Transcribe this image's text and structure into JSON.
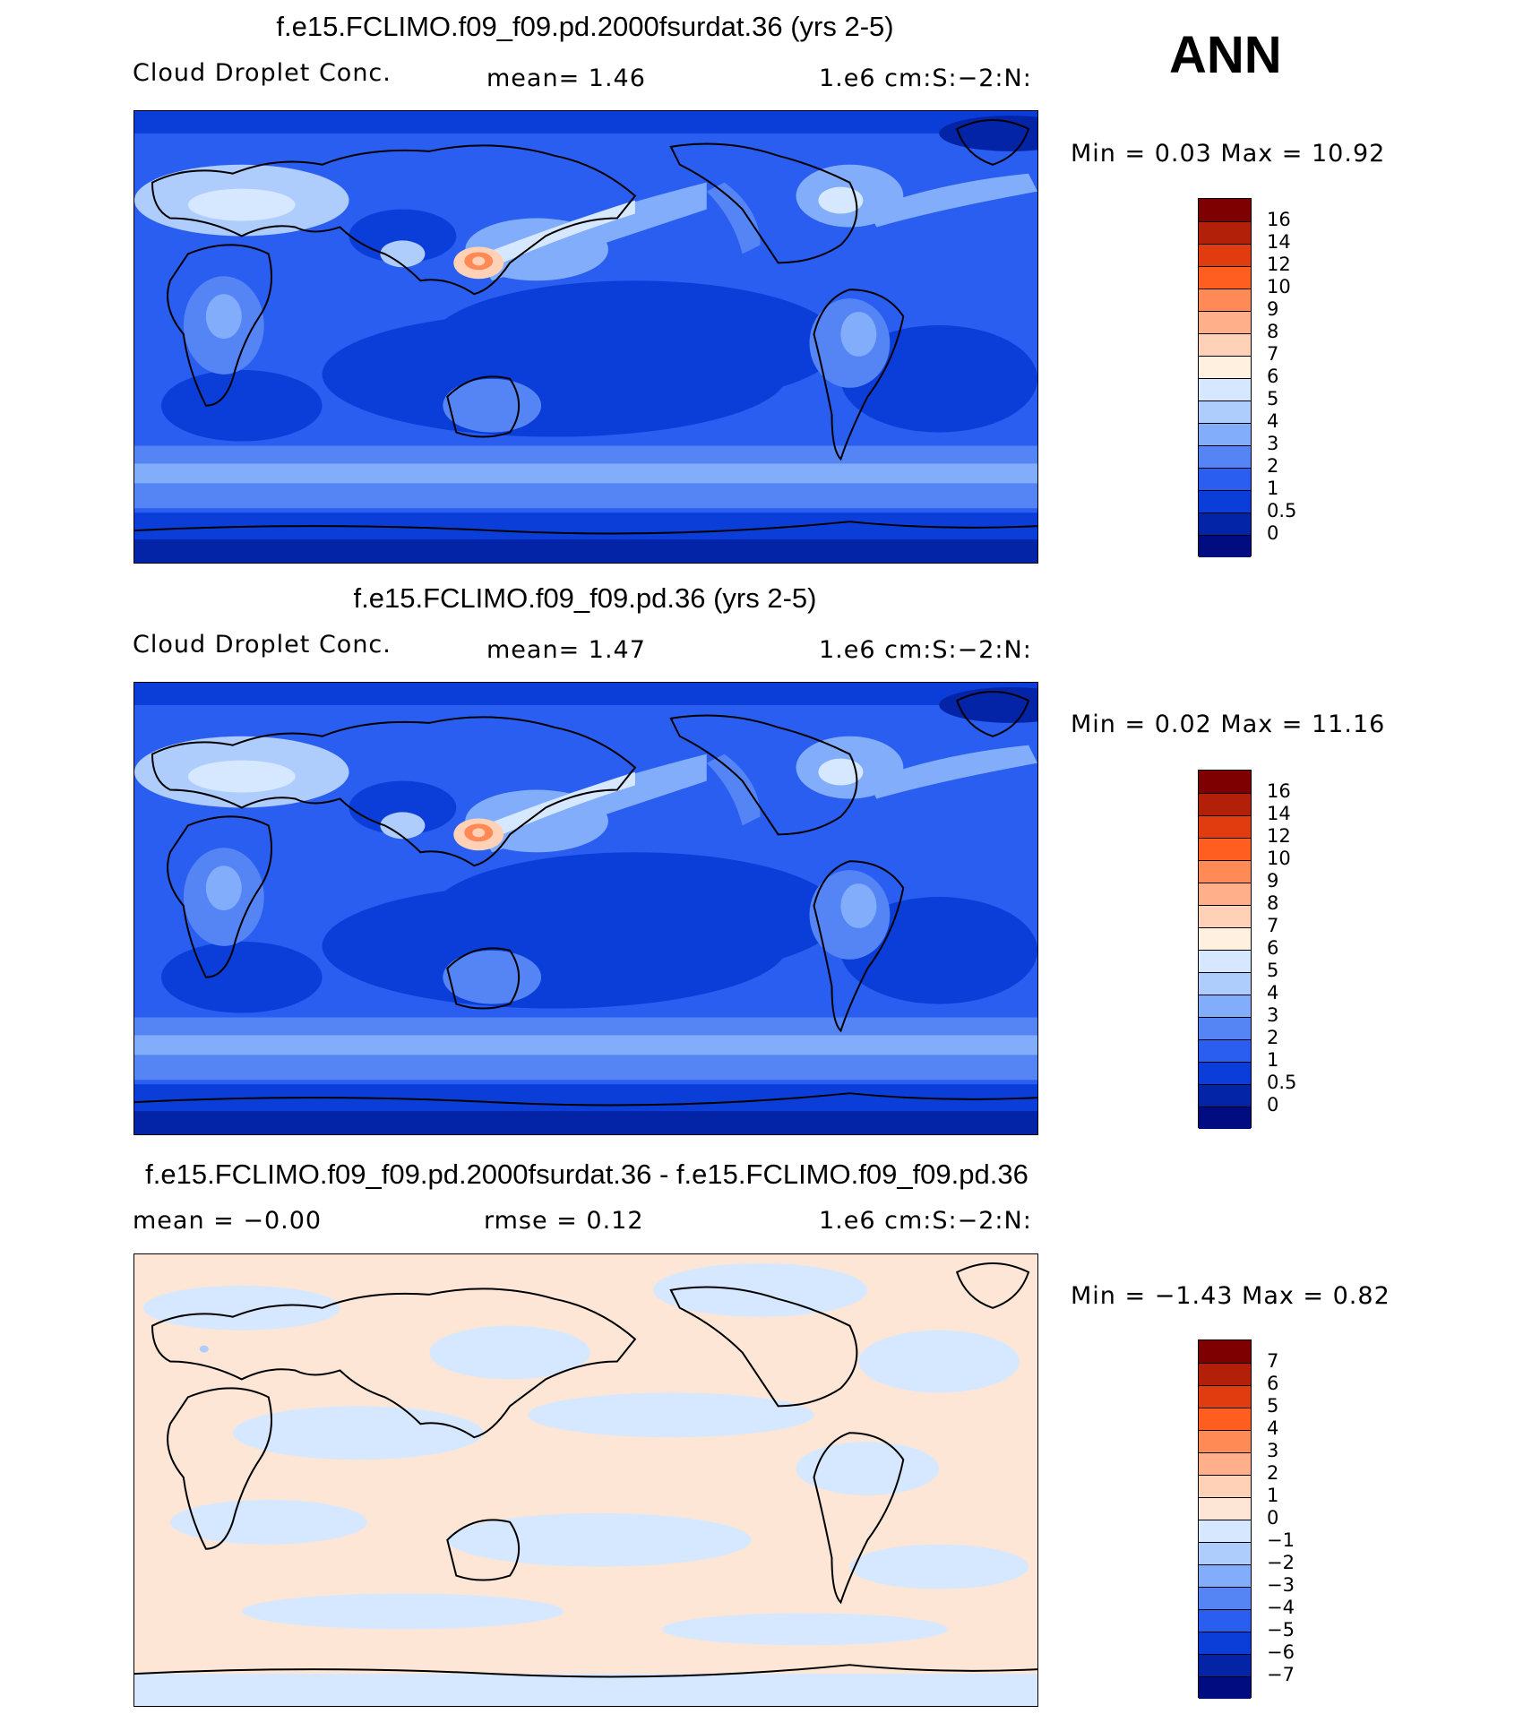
{
  "season": "ANN",
  "panels": [
    {
      "title": "f.e15.FCLIMO.f09_f09.pd.2000fsurdat.36 (yrs 2-5)",
      "left_label": "Cloud Droplet Conc.",
      "center_label": "mean=    1.46",
      "right_label": "1.e6 cm:S:−2:N:",
      "minmax": "Min =    0.03 Max =   10.92",
      "colorbar_labels": [
        "16",
        "14",
        "12",
        "10",
        "9",
        "8",
        "7",
        "6",
        "5",
        "4",
        "3",
        "2",
        "1",
        "0.5",
        "0"
      ]
    },
    {
      "title": "f.e15.FCLIMO.f09_f09.pd.36 (yrs 2-5)",
      "left_label": "Cloud Droplet Conc.",
      "center_label": "mean=    1.47",
      "right_label": "1.e6 cm:S:−2:N:",
      "minmax": "Min =    0.02 Max =   11.16",
      "colorbar_labels": [
        "16",
        "14",
        "12",
        "10",
        "9",
        "8",
        "7",
        "6",
        "5",
        "4",
        "3",
        "2",
        "1",
        "0.5",
        "0"
      ]
    },
    {
      "title": "f.e15.FCLIMO.f09_f09.pd.2000fsurdat.36 - f.e15.FCLIMO.f09_f09.pd.36",
      "left_label": "mean =   −0.00",
      "center_label": "rmse =    0.12",
      "right_label": "1.e6 cm:S:−2:N:",
      "minmax": "Min =  −1.43 Max =    0.82",
      "colorbar_labels": [
        "7",
        "6",
        "5",
        "4",
        "3",
        "2",
        "1",
        "0",
        "−1",
        "−2",
        "−3",
        "−4",
        "−5",
        "−6",
        "−7"
      ]
    }
  ],
  "colors": {
    "abs_scale": [
      "#7f0000",
      "#b2200a",
      "#e03c0f",
      "#ff5e20",
      "#ff8a55",
      "#ffb08a",
      "#ffd2b8",
      "#fff0e0",
      "#d6e8ff",
      "#aecdfc",
      "#82adfa",
      "#5585f5",
      "#2a5ef0",
      "#0b3ed8",
      "#0424a8",
      "#000c80"
    ],
    "diff_scale": [
      "#7f0000",
      "#b2200a",
      "#e03c0f",
      "#ff5e20",
      "#ff8a55",
      "#ffb08a",
      "#ffd2b8",
      "#fde6d6",
      "#d6e8ff",
      "#aecdfc",
      "#82adfa",
      "#5585f5",
      "#2a5ef0",
      "#0b3ed8",
      "#0424a8",
      "#000c80"
    ],
    "land_line": "#000000"
  }
}
